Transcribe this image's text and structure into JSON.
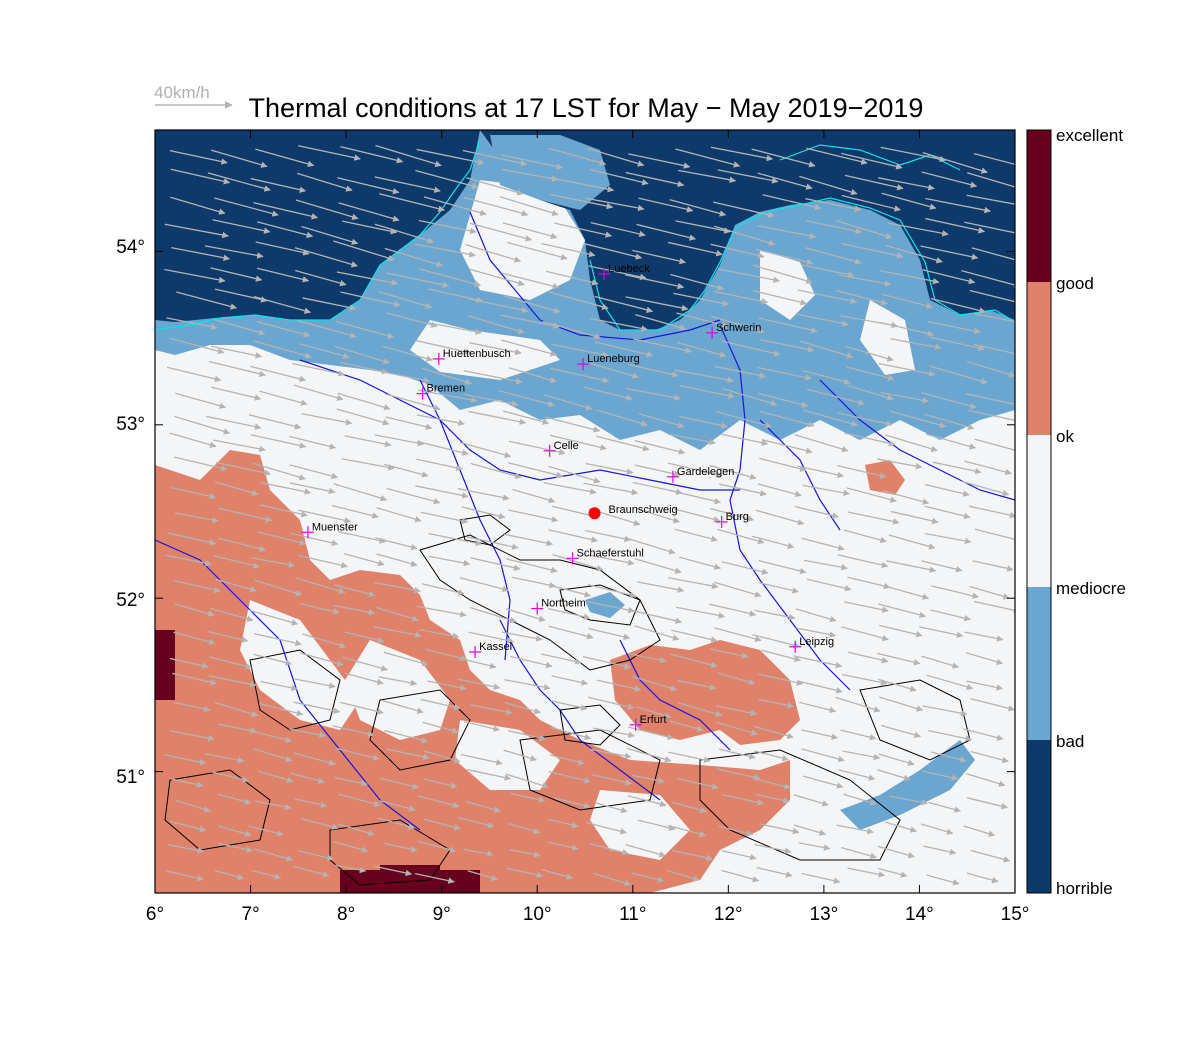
{
  "header": {
    "title": "Thermal conditions at 17 LST for May − May  2019−2019",
    "wind_reference_label": "40km/h"
  },
  "axes": {
    "lon_ticks": [
      "6°",
      "7°",
      "8°",
      "9°",
      "10°",
      "11°",
      "12°",
      "13°",
      "14°",
      "15°"
    ],
    "lat_ticks": [
      "54°",
      "53°",
      "52°",
      "51°"
    ],
    "lon_range": [
      6,
      15
    ],
    "lat_range": [
      50.3,
      54.7
    ]
  },
  "legend": {
    "classes": [
      {
        "label": "excellent",
        "color": "#67001f"
      },
      {
        "label": "good",
        "color": "#e0826a"
      },
      {
        "label": "ok",
        "color": "#f4f5f6"
      },
      {
        "label": "mediocre",
        "color": "#6aa6d0"
      },
      {
        "label": "bad",
        "color": "#0d3a6b"
      },
      {
        "label": "horrible",
        "color": ""
      }
    ]
  },
  "cities": [
    {
      "name": "Luebeck",
      "lon": 10.7,
      "lat": 53.87
    },
    {
      "name": "Schwerin",
      "lon": 11.83,
      "lat": 53.53
    },
    {
      "name": "Huettenbusch",
      "lon": 8.97,
      "lat": 53.38
    },
    {
      "name": "Lueneburg",
      "lon": 10.48,
      "lat": 53.35
    },
    {
      "name": "Bremen",
      "lon": 8.8,
      "lat": 53.18
    },
    {
      "name": "Celle",
      "lon": 10.13,
      "lat": 52.85
    },
    {
      "name": "Gardelegen",
      "lon": 11.42,
      "lat": 52.7
    },
    {
      "name": "Burg",
      "lon": 11.93,
      "lat": 52.44
    },
    {
      "name": "Muenster",
      "lon": 7.6,
      "lat": 52.38
    },
    {
      "name": "Schaeferstuhl",
      "lon": 10.37,
      "lat": 52.23
    },
    {
      "name": "Northeim",
      "lon": 10.0,
      "lat": 51.94
    },
    {
      "name": "Kassel",
      "lon": 9.35,
      "lat": 51.69
    },
    {
      "name": "Leipzig",
      "lon": 12.7,
      "lat": 51.72
    },
    {
      "name": "Erfurt",
      "lon": 11.03,
      "lat": 51.27
    }
  ],
  "home_site": {
    "name": "Braunschweig",
    "lon": 10.6,
    "lat": 52.49
  },
  "colors": {
    "excellent": "#67001f",
    "good": "#e0826a",
    "ok": "#f4f5f6",
    "mediocre": "#6aa6d0",
    "bad": "#0d3a6b",
    "coast": "#00e5ee",
    "river": "#1515e0",
    "terrain_contour": "#000000",
    "wind_arrow": "#b4b4b4",
    "city_marker": "#e000e0",
    "home_marker": "#ff0000"
  },
  "wind": {
    "direction": "from WNW",
    "typical_speed_kmh": 30
  }
}
